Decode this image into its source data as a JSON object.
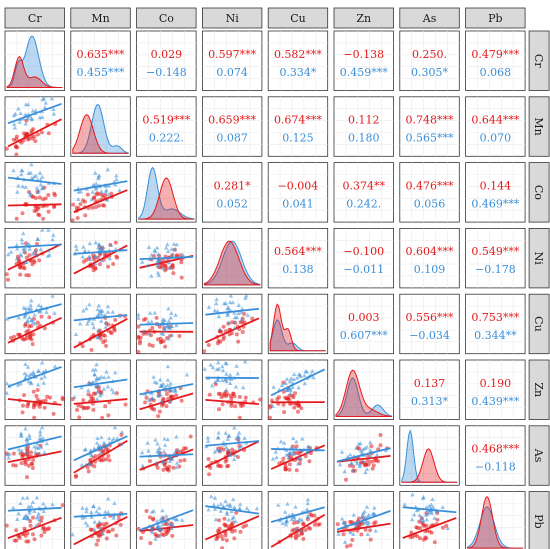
{
  "colors": {
    "group1": "#e41a1c",
    "group2": "#3a8fd9"
  },
  "variables": [
    "Cr",
    "Mn",
    "Co",
    "Ni",
    "Cu",
    "Zn",
    "As",
    "Pb"
  ],
  "chart_data": {
    "type": "scatter-matrix",
    "variables": [
      "Cr",
      "Mn",
      "Co",
      "Ni",
      "Cu",
      "Zn",
      "As",
      "Pb"
    ],
    "upper_panels": "correlation coefficients (group1 red, group2 blue)",
    "lower_panels": "scatter with linear fit per group",
    "diagonal_panels": "density per group",
    "grid": true,
    "correlations": [
      {
        "row": "Cr",
        "col": "Mn",
        "red": "0.635***",
        "blue": "0.455***"
      },
      {
        "row": "Cr",
        "col": "Co",
        "red": "0.029",
        "blue": "−0.148"
      },
      {
        "row": "Cr",
        "col": "Ni",
        "red": "0.597***",
        "blue": "0.074"
      },
      {
        "row": "Cr",
        "col": "Cu",
        "red": "0.582***",
        "blue": "0.334*"
      },
      {
        "row": "Cr",
        "col": "Zn",
        "red": "−0.138",
        "blue": "0.459***"
      },
      {
        "row": "Cr",
        "col": "As",
        "red": "0.250.",
        "blue": "0.305*"
      },
      {
        "row": "Cr",
        "col": "Pb",
        "red": "0.479***",
        "blue": "0.068"
      },
      {
        "row": "Mn",
        "col": "Co",
        "red": "0.519***",
        "blue": "0.222."
      },
      {
        "row": "Mn",
        "col": "Ni",
        "red": "0.659***",
        "blue": "0.087"
      },
      {
        "row": "Mn",
        "col": "Cu",
        "red": "0.674***",
        "blue": "0.125"
      },
      {
        "row": "Mn",
        "col": "Zn",
        "red": "0.112",
        "blue": "0.180"
      },
      {
        "row": "Mn",
        "col": "As",
        "red": "0.748***",
        "blue": "0.565***"
      },
      {
        "row": "Mn",
        "col": "Pb",
        "red": "0.644***",
        "blue": "0.070"
      },
      {
        "row": "Co",
        "col": "Ni",
        "red": "0.281*",
        "blue": "0.052"
      },
      {
        "row": "Co",
        "col": "Cu",
        "red": "−0.004",
        "blue": "0.041"
      },
      {
        "row": "Co",
        "col": "Zn",
        "red": "0.374**",
        "blue": "0.242."
      },
      {
        "row": "Co",
        "col": "As",
        "red": "0.476***",
        "blue": "0.056"
      },
      {
        "row": "Co",
        "col": "Pb",
        "red": "0.144",
        "blue": "0.469***"
      },
      {
        "row": "Ni",
        "col": "Cu",
        "red": "0.564***",
        "blue": "0.138"
      },
      {
        "row": "Ni",
        "col": "Zn",
        "red": "−0.100",
        "blue": "−0.011"
      },
      {
        "row": "Ni",
        "col": "As",
        "red": "0.604***",
        "blue": "0.109"
      },
      {
        "row": "Ni",
        "col": "Pb",
        "red": "0.549***",
        "blue": "−0.178"
      },
      {
        "row": "Cu",
        "col": "Zn",
        "red": "0.003",
        "blue": "0.607***"
      },
      {
        "row": "Cu",
        "col": "As",
        "red": "0.556***",
        "blue": "−0.034"
      },
      {
        "row": "Cu",
        "col": "Pb",
        "red": "0.753***",
        "blue": "0.344**"
      },
      {
        "row": "Zn",
        "col": "As",
        "red": "0.137",
        "blue": "0.313*"
      },
      {
        "row": "Zn",
        "col": "Pb",
        "red": "0.190",
        "blue": "0.439***"
      },
      {
        "row": "As",
        "col": "Pb",
        "red": "0.468***",
        "blue": "−0.118"
      }
    ]
  }
}
